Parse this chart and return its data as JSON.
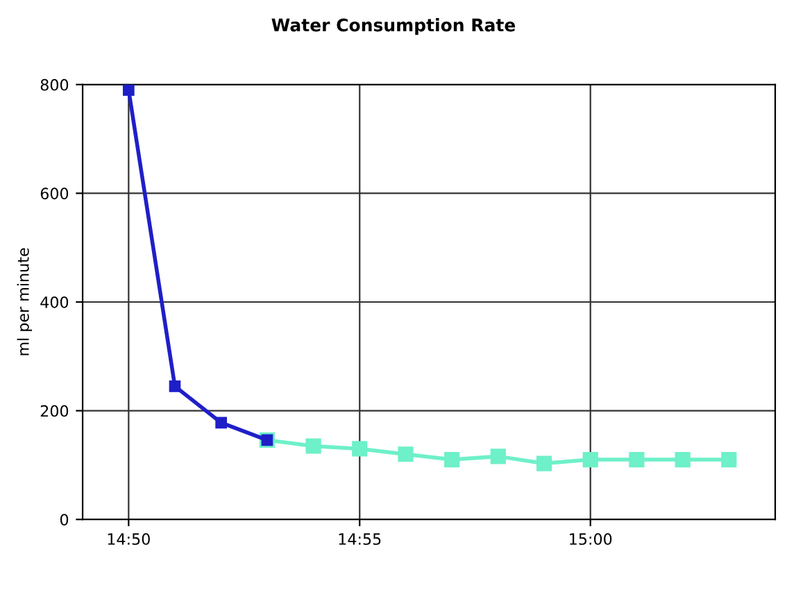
{
  "chart_data": {
    "type": "line",
    "title": "Water Consumption Rate",
    "ylabel": "ml per minute",
    "series": [
      {
        "color": "#1f1fc8",
        "x": [
          14.8333,
          14.85,
          14.8667,
          14.8833
        ],
        "values": [
          790,
          245,
          178,
          146
        ]
      },
      {
        "color": "#6ef0c8",
        "x": [
          14.8833,
          14.9,
          14.9167,
          14.9333,
          14.95,
          14.9667,
          14.9833,
          15.0,
          15.0167,
          15.0333,
          15.05
        ],
        "values": [
          146,
          135,
          130,
          120,
          110,
          116,
          103,
          110,
          110,
          110,
          110
        ]
      }
    ],
    "xlim": [
      14.8167,
      15.0667
    ],
    "xticks": [
      {
        "value": 14.8333,
        "label": "14:50"
      },
      {
        "value": 14.9167,
        "label": "14:55"
      },
      {
        "value": 15.0,
        "label": "15:00"
      }
    ],
    "ylim": [
      0,
      800
    ],
    "yticks": [
      0,
      200,
      400,
      600,
      800
    ],
    "grid": true,
    "marker": "square",
    "line_style": "solid"
  }
}
